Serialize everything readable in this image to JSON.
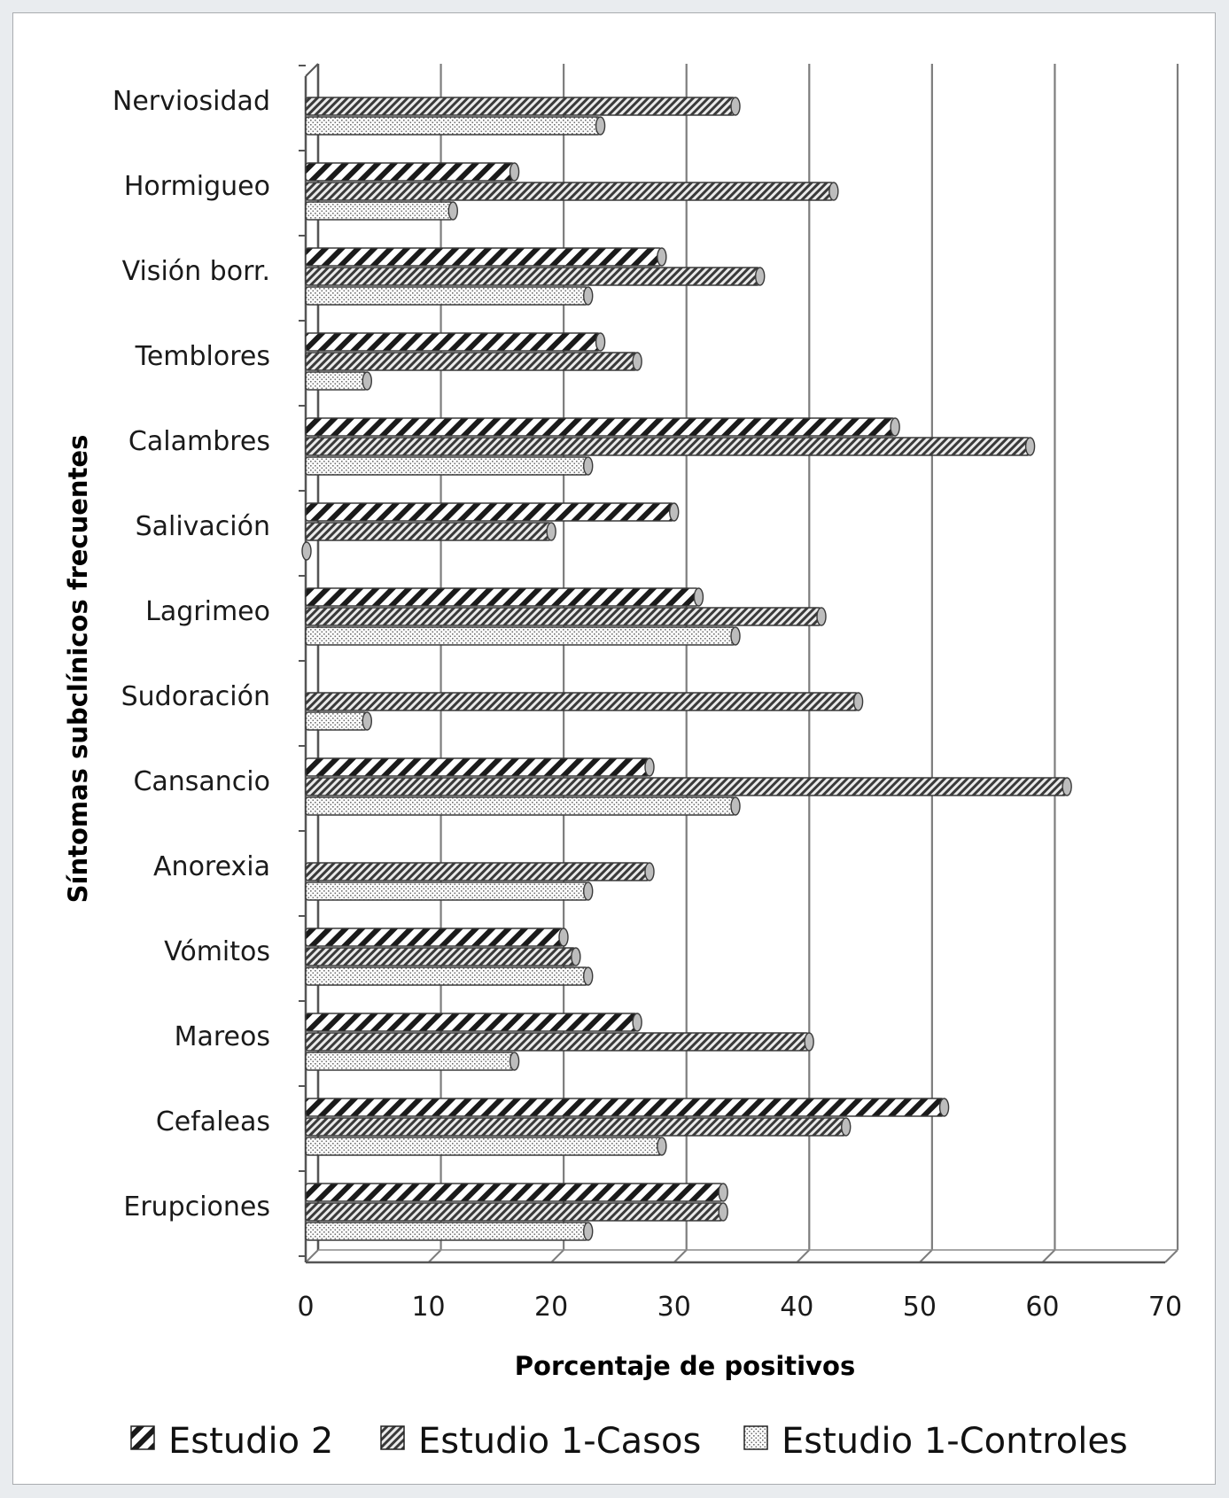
{
  "chart_data": {
    "type": "bar",
    "orientation": "horizontal",
    "xlabel": "Porcentaje de positivos",
    "ylabel": "Síntomas subclínicos frecuentes",
    "xlim": [
      0,
      70
    ],
    "xticks": [
      0,
      10,
      20,
      30,
      40,
      50,
      60,
      70
    ],
    "grid": true,
    "legend_position": "bottom",
    "categories": [
      "Nerviosidad",
      "Hormigueo",
      "Visión borr.",
      "Temblores",
      "Calambres",
      "Salivación",
      "Lagrimeo",
      "Sudoración",
      "Cansancio",
      "Anorexia",
      "Vómitos",
      "Mareos",
      "Cefaleas",
      "Erupciones"
    ],
    "series": [
      {
        "name": "Estudio 2",
        "pattern": "coarse-diagonal",
        "values": [
          null,
          17,
          29,
          24,
          48,
          30,
          32,
          null,
          28,
          null,
          21,
          27,
          52,
          34
        ]
      },
      {
        "name": "Estudio 1-Casos",
        "pattern": "fine-diagonal",
        "values": [
          35,
          43,
          37,
          27,
          59,
          20,
          42,
          45,
          62,
          28,
          22,
          41,
          44,
          34
        ]
      },
      {
        "name": "Estudio 1-Controles",
        "pattern": "dots",
        "values": [
          24,
          12,
          23,
          5,
          23,
          0,
          35,
          5,
          35,
          23,
          23,
          17,
          29,
          23
        ]
      }
    ]
  }
}
